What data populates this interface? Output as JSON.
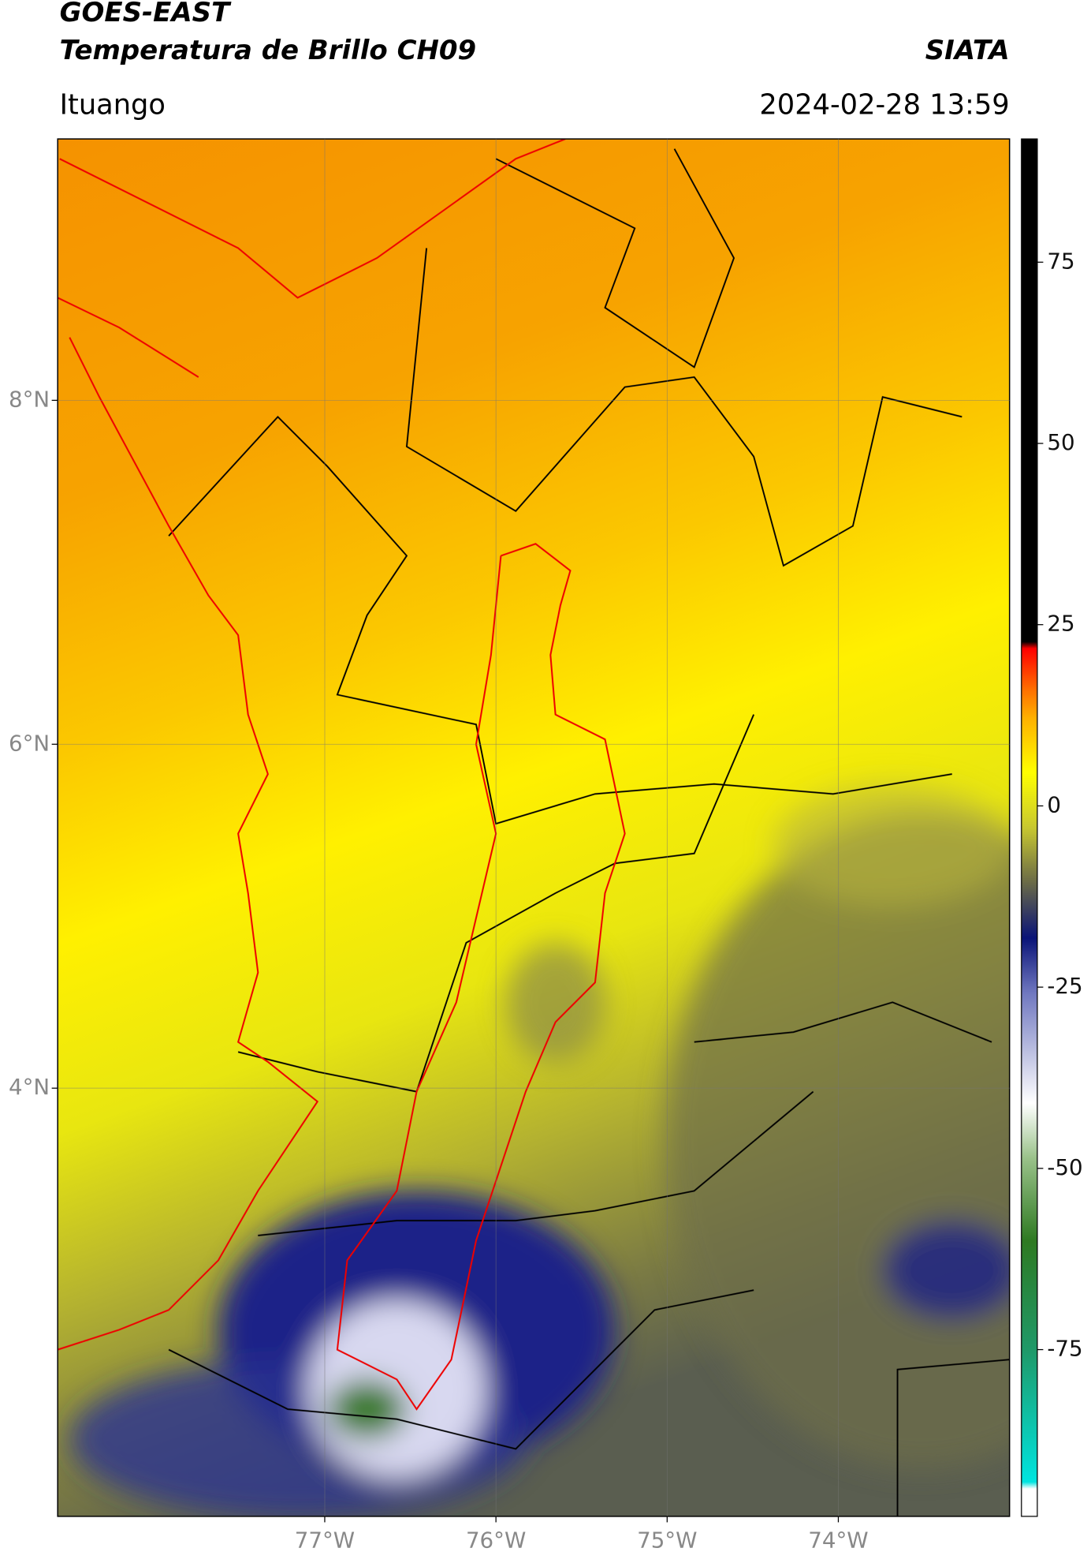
{
  "header": {
    "title": "GOES-EAST",
    "subtitle": "Temperatura de Brillo CH09",
    "brand": "SIATA",
    "location": "Ituango",
    "datetime": "2024-02-28 13:59"
  },
  "map": {
    "lon_range": [
      -78.56,
      -73.0
    ],
    "lat_range": [
      1.51,
      9.52
    ],
    "lon_ticks": [
      {
        "value": -77,
        "label": "77°W"
      },
      {
        "value": -76,
        "label": "76°W"
      },
      {
        "value": -75,
        "label": "75°W"
      },
      {
        "value": -74,
        "label": "74°W"
      }
    ],
    "lat_ticks": [
      {
        "value": 8,
        "label": "8°N"
      },
      {
        "value": 6,
        "label": "6°N"
      },
      {
        "value": 4,
        "label": "4°N"
      }
    ]
  },
  "colorbar": {
    "range": [
      -98,
      92
    ],
    "ticks": [
      75,
      50,
      25,
      0,
      -25,
      -50,
      -75
    ]
  }
}
